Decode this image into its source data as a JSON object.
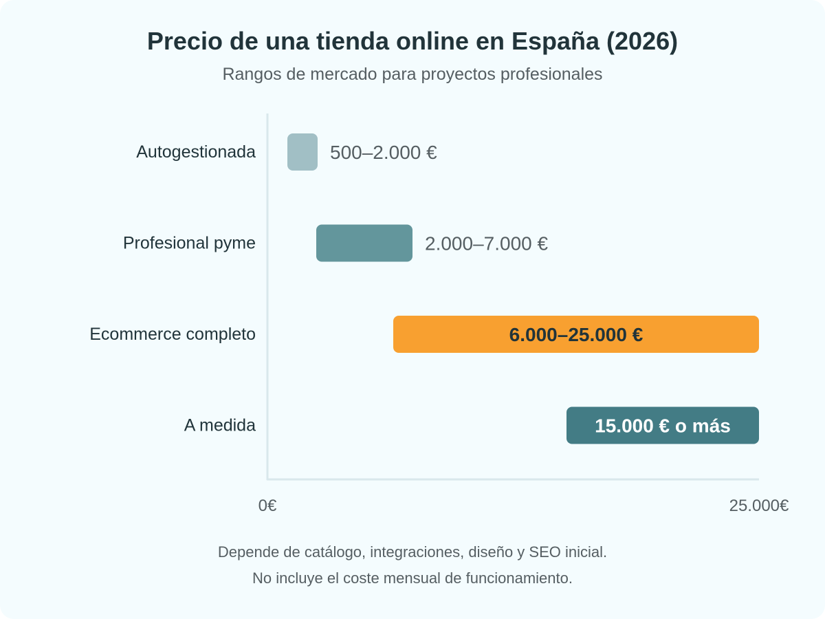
{
  "chart_data": {
    "type": "bar",
    "orientation": "horizontal",
    "title": "Precio de una tienda online en España (2026)",
    "subtitle": "Rangos de mercado para proyectos profesionales",
    "xlim": [
      0,
      25000
    ],
    "x_tick_labels": [
      "0€",
      "25.000€"
    ],
    "grid": false,
    "categories": [
      {
        "name": "Autogestionada",
        "min": 500,
        "max": 2000,
        "label": "500–2.000 €",
        "color": "#a1bfc5",
        "label_position": "outside",
        "label_color": "#555e62"
      },
      {
        "name": "Profesional pyme",
        "min": 2000,
        "max": 7000,
        "label": "2.000–7.000 €",
        "color": "#63969c",
        "label_position": "outside",
        "label_color": "#555e62"
      },
      {
        "name": "Ecommerce completo",
        "min": 6000,
        "max": 25000,
        "label": "6.000–25.000 €",
        "color": "#f8a030",
        "label_position": "inside",
        "label_color": "#21343a"
      },
      {
        "name": "A medida",
        "min": 15000,
        "max": 25000,
        "label": "15.000 € o más",
        "color": "#437c85",
        "label_position": "inside",
        "label_color": "#ffffff"
      }
    ],
    "notes": [
      "Depende de catálogo, integraciones, diseño y SEO inicial.",
      "No incluye el coste mensual de funcionamiento."
    ]
  },
  "colors": {
    "background": "#f4fcfe",
    "axis": "#d9e8ec",
    "title": "#21343a",
    "muted_text": "#555e62"
  }
}
